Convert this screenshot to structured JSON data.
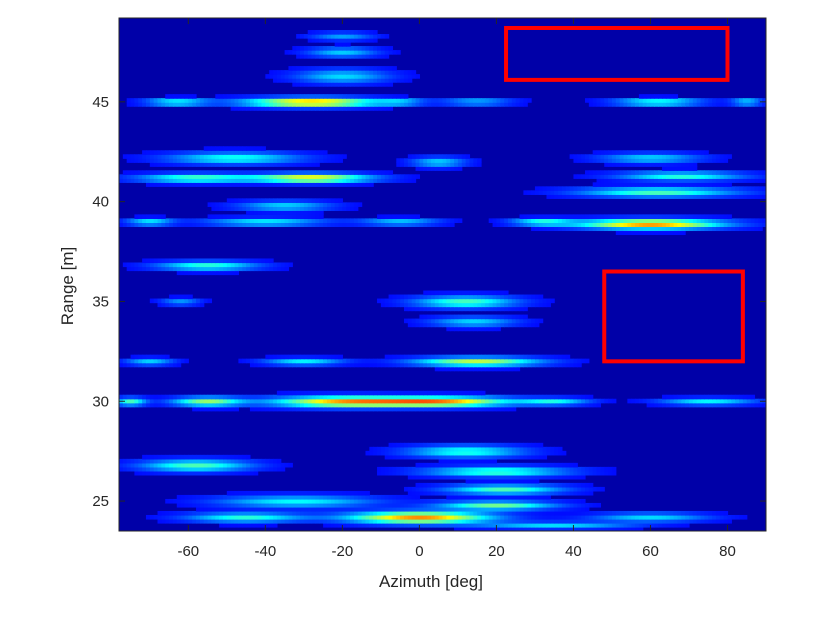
{
  "chart_data": {
    "type": "heatmap",
    "title": "",
    "xlabel": "Azimuth [deg]",
    "ylabel": "Range [m]",
    "xlim": [
      -78,
      90
    ],
    "ylim": [
      23.5,
      49.2
    ],
    "xticks": [
      -60,
      -40,
      -20,
      0,
      20,
      40,
      60,
      80
    ],
    "yticks": [
      25,
      30,
      35,
      40,
      45
    ],
    "xtick_labels": [
      "-60",
      "-40",
      "-20",
      "0",
      "20",
      "40",
      "60",
      "80"
    ],
    "ytick_labels": [
      "25",
      "30",
      "35",
      "40",
      "45"
    ],
    "colormap": "jet",
    "background_value": 0.0,
    "blobs": [
      {
        "range": 45.0,
        "az_center": -28,
        "az_width": 34,
        "range_width": 0.45,
        "intensity": 0.85
      },
      {
        "range": 45.0,
        "az_center": -63,
        "az_width": 16,
        "range_width": 0.35,
        "intensity": 0.4
      },
      {
        "range": 45.0,
        "az_center": -5,
        "az_width": 12,
        "range_width": 0.3,
        "intensity": 0.28
      },
      {
        "range": 45.0,
        "az_center": 15,
        "az_width": 18,
        "range_width": 0.3,
        "intensity": 0.3
      },
      {
        "range": 45.0,
        "az_center": 62,
        "az_width": 22,
        "range_width": 0.35,
        "intensity": 0.45
      },
      {
        "range": 45.0,
        "az_center": 85,
        "az_width": 8,
        "range_width": 0.3,
        "intensity": 0.35
      },
      {
        "range": 46.3,
        "az_center": -20,
        "az_width": 24,
        "range_width": 0.7,
        "intensity": 0.3
      },
      {
        "range": 47.5,
        "az_center": -20,
        "az_width": 18,
        "range_width": 0.5,
        "intensity": 0.28
      },
      {
        "range": 48.3,
        "az_center": -20,
        "az_width": 16,
        "range_width": 0.4,
        "intensity": 0.22
      },
      {
        "range": 42.2,
        "az_center": -48,
        "az_width": 34,
        "range_width": 0.6,
        "intensity": 0.38
      },
      {
        "range": 41.2,
        "az_center": -28,
        "az_width": 30,
        "range_width": 0.45,
        "intensity": 0.72
      },
      {
        "range": 41.2,
        "az_center": -58,
        "az_width": 30,
        "range_width": 0.45,
        "intensity": 0.45
      },
      {
        "range": 42.0,
        "az_center": 5,
        "az_width": 14,
        "range_width": 0.5,
        "intensity": 0.3
      },
      {
        "range": 40.5,
        "az_center": 62,
        "az_width": 40,
        "range_width": 0.5,
        "intensity": 0.45
      },
      {
        "range": 41.3,
        "az_center": 68,
        "az_width": 32,
        "range_width": 0.45,
        "intensity": 0.4
      },
      {
        "range": 42.2,
        "az_center": 60,
        "az_width": 26,
        "range_width": 0.5,
        "intensity": 0.3
      },
      {
        "range": 38.9,
        "az_center": 60,
        "az_width": 36,
        "range_width": 0.5,
        "intensity": 0.85
      },
      {
        "range": 39.0,
        "az_center": 32,
        "az_width": 16,
        "range_width": 0.35,
        "intensity": 0.4
      },
      {
        "range": 39.0,
        "az_center": -40,
        "az_width": 30,
        "range_width": 0.4,
        "intensity": 0.35
      },
      {
        "range": 39.0,
        "az_center": -70,
        "az_width": 12,
        "range_width": 0.35,
        "intensity": 0.35
      },
      {
        "range": 39.0,
        "az_center": -5,
        "az_width": 20,
        "range_width": 0.35,
        "intensity": 0.3
      },
      {
        "range": 39.8,
        "az_center": -35,
        "az_width": 24,
        "range_width": 0.5,
        "intensity": 0.3
      },
      {
        "range": 36.8,
        "az_center": -55,
        "az_width": 26,
        "range_width": 0.45,
        "intensity": 0.42
      },
      {
        "range": 35.0,
        "az_center": 12,
        "az_width": 26,
        "range_width": 0.6,
        "intensity": 0.45
      },
      {
        "range": 34.0,
        "az_center": 14,
        "az_width": 22,
        "range_width": 0.5,
        "intensity": 0.3
      },
      {
        "range": 35.0,
        "az_center": -62,
        "az_width": 10,
        "range_width": 0.35,
        "intensity": 0.22
      },
      {
        "range": 32.0,
        "az_center": 15,
        "az_width": 32,
        "range_width": 0.45,
        "intensity": 0.62
      },
      {
        "range": 32.0,
        "az_center": -30,
        "az_width": 20,
        "range_width": 0.35,
        "intensity": 0.35
      },
      {
        "range": 32.0,
        "az_center": -70,
        "az_width": 12,
        "range_width": 0.35,
        "intensity": 0.3
      },
      {
        "range": 30.0,
        "az_center": -20,
        "az_width": 36,
        "range_width": 0.55,
        "intensity": 0.75
      },
      {
        "range": 30.0,
        "az_center": 5,
        "az_width": 36,
        "range_width": 0.5,
        "intensity": 0.82
      },
      {
        "range": 30.0,
        "az_center": -55,
        "az_width": 18,
        "range_width": 0.45,
        "intensity": 0.55
      },
      {
        "range": 30.0,
        "az_center": -75,
        "az_width": 8,
        "range_width": 0.4,
        "intensity": 0.45
      },
      {
        "range": 30.0,
        "az_center": 35,
        "az_width": 18,
        "range_width": 0.35,
        "intensity": 0.35
      },
      {
        "range": 30.0,
        "az_center": 75,
        "az_width": 24,
        "range_width": 0.35,
        "intensity": 0.35
      },
      {
        "range": 27.5,
        "az_center": 12,
        "az_width": 30,
        "range_width": 0.6,
        "intensity": 0.4
      },
      {
        "range": 26.8,
        "az_center": -58,
        "az_width": 28,
        "range_width": 0.6,
        "intensity": 0.45
      },
      {
        "range": 26.5,
        "az_center": 20,
        "az_width": 36,
        "range_width": 0.5,
        "intensity": 0.45
      },
      {
        "range": 25.6,
        "az_center": 22,
        "az_width": 30,
        "range_width": 0.5,
        "intensity": 0.45
      },
      {
        "range": 25.0,
        "az_center": -32,
        "az_width": 40,
        "range_width": 0.6,
        "intensity": 0.35
      },
      {
        "range": 24.8,
        "az_center": 20,
        "az_width": 30,
        "range_width": 0.45,
        "intensity": 0.5
      },
      {
        "range": 24.2,
        "az_center": 0,
        "az_width": 36,
        "range_width": 0.6,
        "intensity": 0.85
      },
      {
        "range": 24.2,
        "az_center": -45,
        "az_width": 30,
        "range_width": 0.5,
        "intensity": 0.4
      },
      {
        "range": 24.2,
        "az_center": 60,
        "az_width": 30,
        "range_width": 0.45,
        "intensity": 0.3
      },
      {
        "range": 23.8,
        "az_center": 35,
        "az_width": 40,
        "range_width": 0.35,
        "intensity": 0.3
      }
    ],
    "annotations": [
      {
        "type": "rectangle",
        "color": "#ff0000",
        "x_range": [
          22.5,
          80
        ],
        "y_range": [
          46.1,
          48.7
        ]
      },
      {
        "type": "rectangle",
        "color": "#ff0000",
        "x_range": [
          48,
          84
        ],
        "y_range": [
          32.0,
          36.5
        ]
      }
    ]
  }
}
